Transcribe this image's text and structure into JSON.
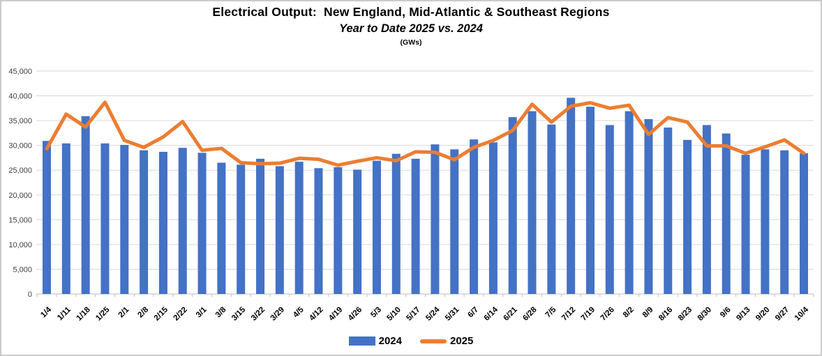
{
  "window": {
    "background": "#ffffff",
    "border_color": "#cbcbcb"
  },
  "header": {
    "title": "Electrical Output:  New England, Mid-Atlantic & Southeast Regions",
    "subtitle": "Year to Date 2025 vs. 2024",
    "units_label": "(GWs)"
  },
  "legend": {
    "items": [
      {
        "label": "2024",
        "marker": "bar-swatch",
        "color": "#4472c4"
      },
      {
        "label": "2025",
        "marker": "line-swatch",
        "color": "#ed7d31"
      }
    ]
  },
  "chart_data": {
    "type": "bar+line",
    "title": "Electrical Output:  New England, Mid-Atlantic & Southeast Regions",
    "subtitle": "Year to Date 2025 vs. 2024",
    "units": "(GWs)",
    "xlabel": "",
    "ylabel": "",
    "ylim": [
      0,
      45000
    ],
    "ytick_interval": 5000,
    "ytick_labels": [
      "0",
      "5,000",
      "10,000",
      "15,000",
      "20,000",
      "25,000",
      "30,000",
      "35,000",
      "40,000",
      "45,000"
    ],
    "grid": true,
    "legend_position": "bottom",
    "categories": [
      "1/4",
      "1/11",
      "1/18",
      "1/25",
      "2/1",
      "2/8",
      "2/15",
      "2/22",
      "3/1",
      "3/8",
      "3/15",
      "3/22",
      "3/29",
      "4/5",
      "4/12",
      "4/19",
      "4/26",
      "5/3",
      "5/10",
      "5/17",
      "5/24",
      "5/31",
      "6/7",
      "6/14",
      "6/21",
      "6/28",
      "7/5",
      "7/12",
      "7/19",
      "7/26",
      "8/2",
      "8/9",
      "8/16",
      "8/23",
      "8/30",
      "9/6",
      "9/13",
      "9/20",
      "9/27",
      "10/4"
    ],
    "series": [
      {
        "name": "2024",
        "type": "bar",
        "color": "#4472c4",
        "values": [
          30900,
          30400,
          35900,
          30400,
          30100,
          29000,
          28700,
          29500,
          28500,
          26500,
          26100,
          27300,
          25800,
          26700,
          25400,
          25600,
          25100,
          26900,
          28300,
          27300,
          30200,
          29200,
          31200,
          30600,
          35700,
          36900,
          34200,
          39600,
          37800,
          34100,
          36900,
          35300,
          33600,
          31100,
          34100,
          32400,
          28100,
          29200,
          29000,
          28400
        ]
      },
      {
        "name": "2025",
        "type": "line",
        "color": "#ed7d31",
        "values": [
          29300,
          36300,
          33700,
          38700,
          31000,
          29600,
          31700,
          34800,
          29000,
          29400,
          26500,
          26300,
          26400,
          27400,
          27200,
          26000,
          26800,
          27500,
          26900,
          28700,
          28600,
          27100,
          29600,
          31000,
          33000,
          38300,
          34700,
          37900,
          38600,
          37500,
          38100,
          32200,
          35600,
          34700,
          29900,
          29900,
          28400,
          29700,
          31100,
          28400
        ]
      }
    ],
    "axis": {
      "grid_color": "#d9d9d9",
      "axis_color": "#bfbfbf",
      "label_color": "#404040",
      "xlabel_color": "#000000",
      "xlabel_rotation": -45
    }
  }
}
